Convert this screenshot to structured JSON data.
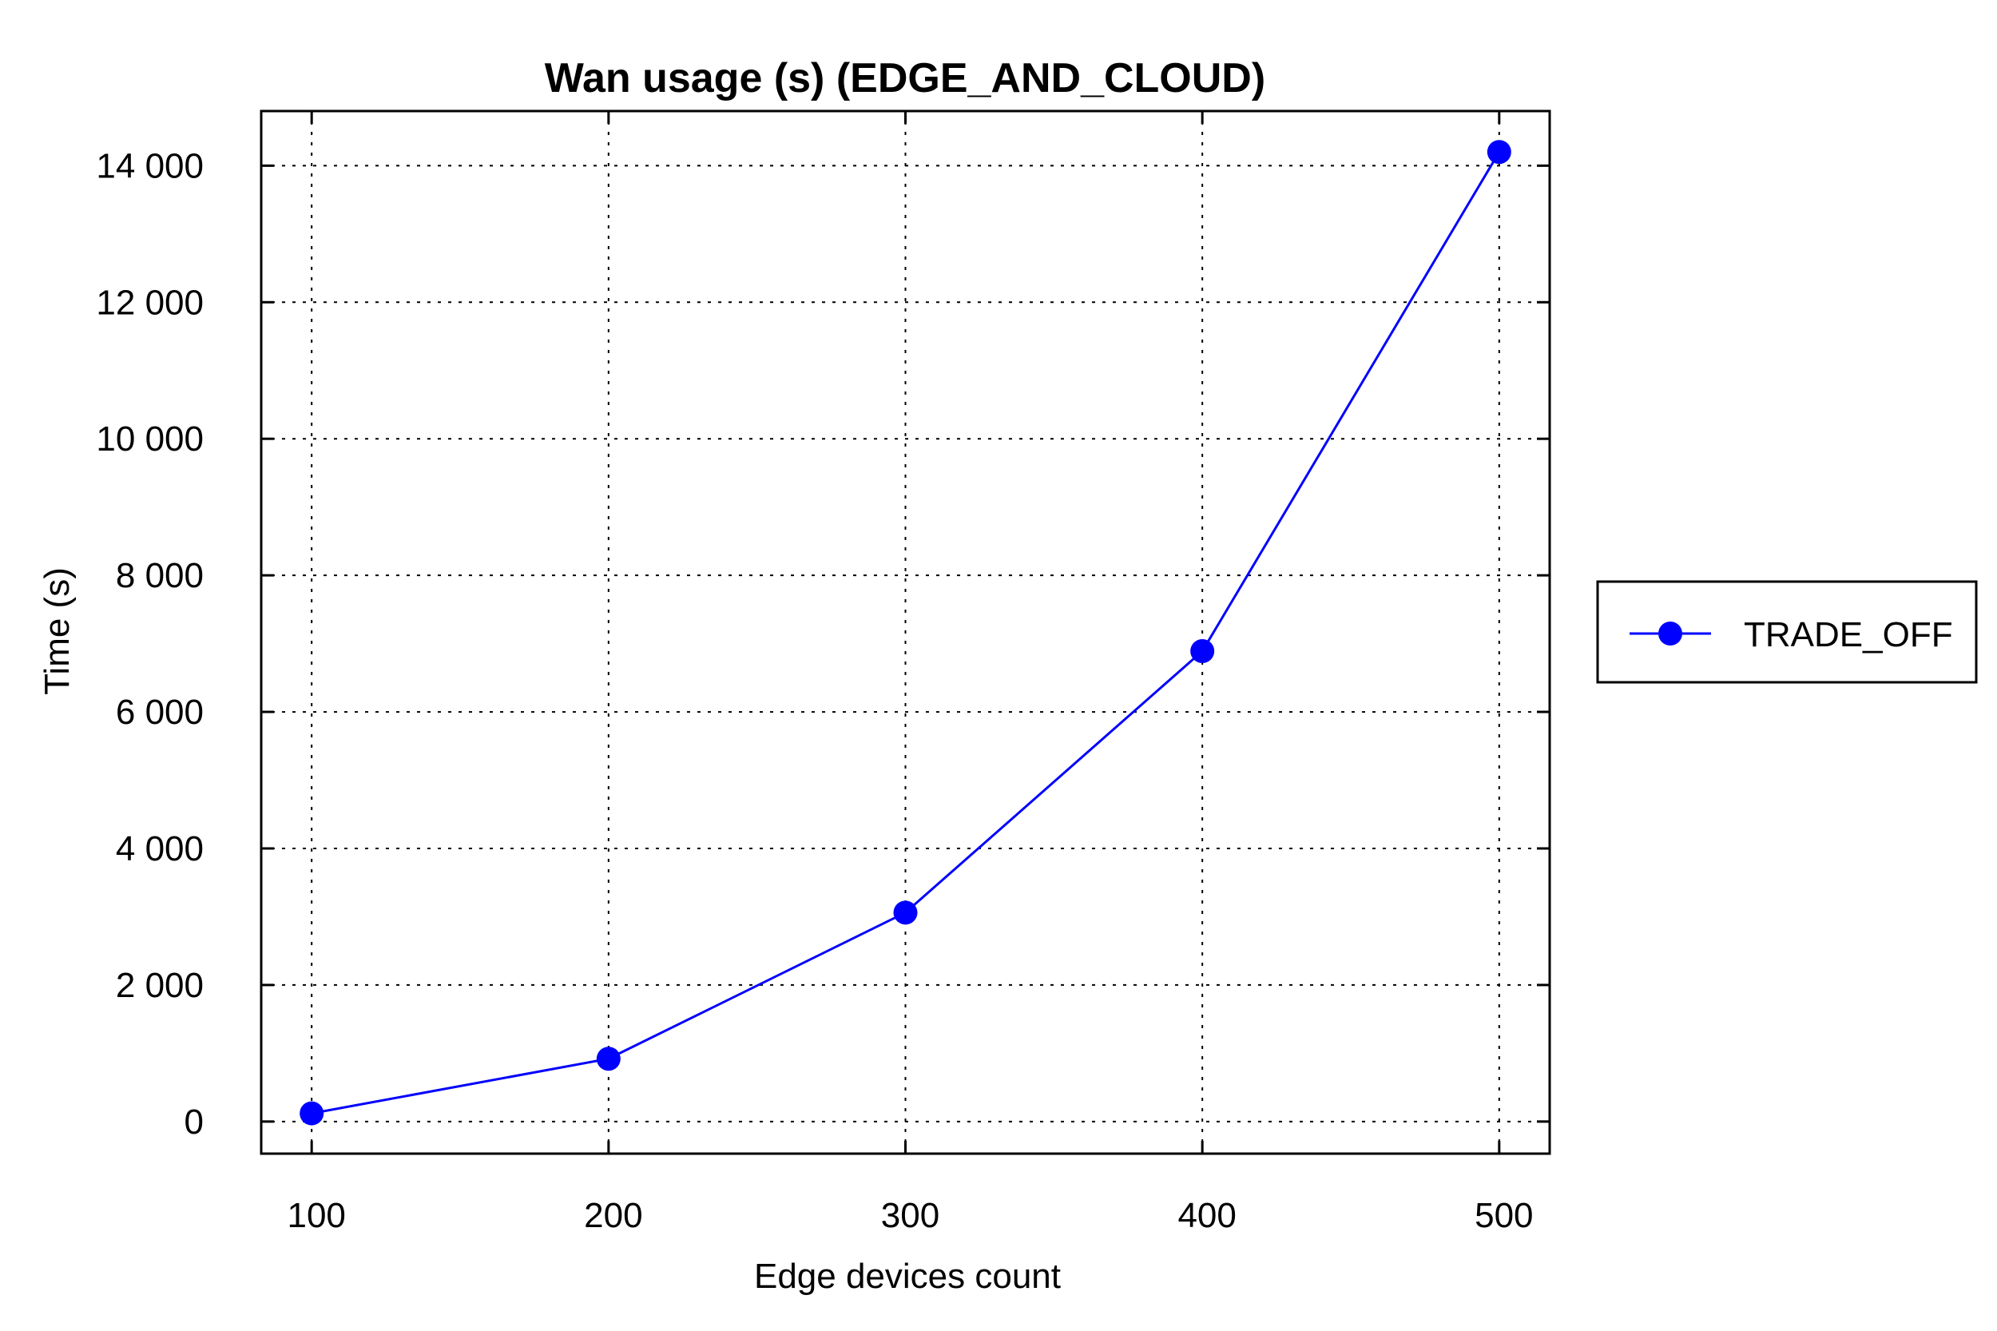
{
  "chart_data": {
    "type": "line",
    "title": "Wan usage (s) (EDGE_AND_CLOUD)",
    "xlabel": "Edge devices count",
    "ylabel": "Time (s)",
    "x": [
      100,
      200,
      300,
      400,
      500
    ],
    "x_tick_labels": [
      "100",
      "200",
      "300",
      "400",
      "500"
    ],
    "xlim": [
      83,
      517
    ],
    "y_ticks": [
      0,
      2000,
      4000,
      6000,
      8000,
      10000,
      12000,
      14000
    ],
    "y_tick_labels": [
      "0",
      "2 000",
      "4 000",
      "6 000",
      "8 000",
      "10 000",
      "12 000",
      "14 000"
    ],
    "ylim": [
      -470,
      14800
    ],
    "grid": true,
    "legend_position": "right",
    "series": [
      {
        "name": "TRADE_OFF",
        "color": "#0000ff",
        "marker": "circle",
        "values": [
          120,
          920,
          3060,
          6890,
          14200
        ]
      }
    ]
  }
}
